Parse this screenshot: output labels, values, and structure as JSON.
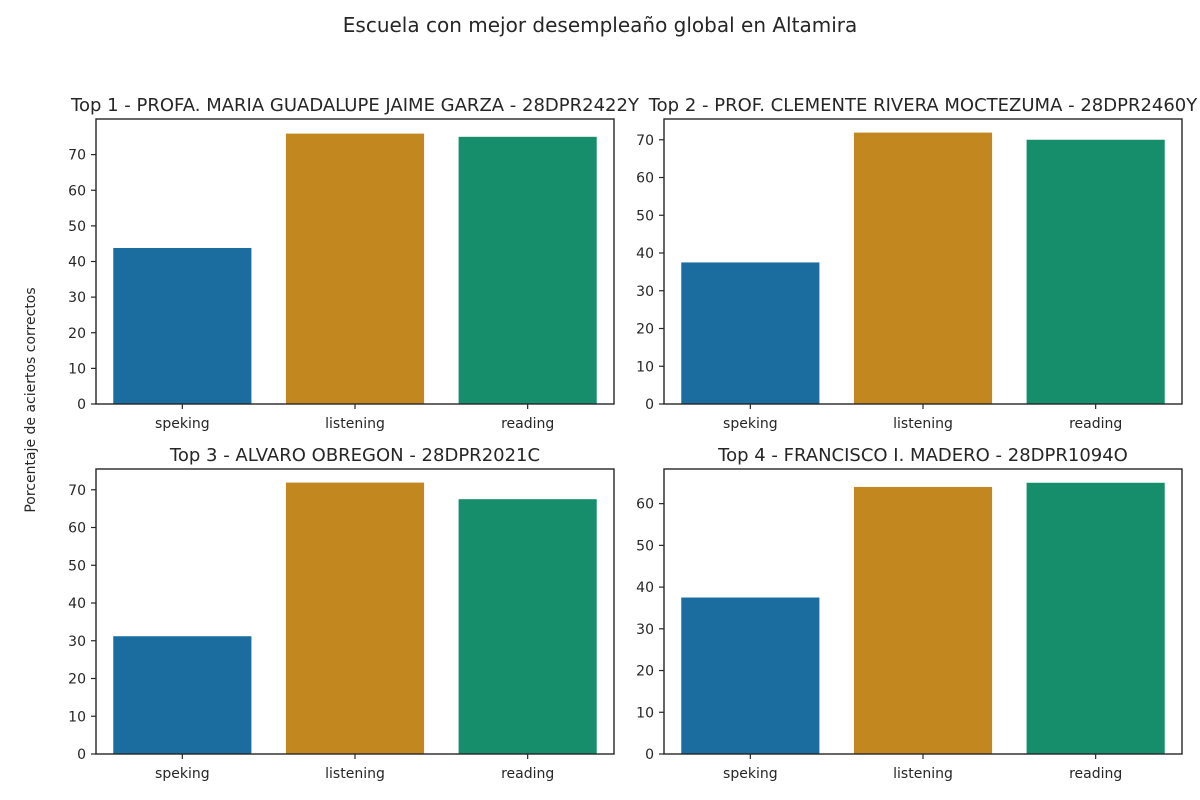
{
  "figure": {
    "suptitle": "Escuela con mejor desempleaño global en Altamira",
    "ylabel": "Porcentaje de aciertos correctos"
  },
  "chart_data": [
    {
      "type": "bar",
      "title": "Top  1 - PROFA. MARIA GUADALUPE JAIME GARZA - 28DPR2422Y",
      "categories": [
        "speking",
        "listening",
        "reading"
      ],
      "values": [
        43.8,
        75.9,
        75.0
      ],
      "ylim": [
        0,
        80
      ],
      "yticks": [
        0,
        10,
        20,
        30,
        40,
        50,
        60,
        70
      ],
      "colors": [
        "#1a6d9e",
        "#c2881f",
        "#168d6b"
      ],
      "grid": false
    },
    {
      "type": "bar",
      "title": "Top  2 - PROF. CLEMENTE RIVERA MOCTEZUMA - 28DPR2460Y",
      "categories": [
        "speking",
        "listening",
        "reading"
      ],
      "values": [
        37.5,
        71.9,
        70.0
      ],
      "ylim": [
        0,
        75.5
      ],
      "yticks": [
        0,
        10,
        20,
        30,
        40,
        50,
        60,
        70
      ],
      "colors": [
        "#1a6d9e",
        "#c2881f",
        "#168d6b"
      ],
      "grid": false
    },
    {
      "type": "bar",
      "title": "Top  3 - ALVARO OBREGON - 28DPR2021C",
      "categories": [
        "speking",
        "listening",
        "reading"
      ],
      "values": [
        31.2,
        71.9,
        67.5
      ],
      "ylim": [
        0,
        75.5
      ],
      "yticks": [
        0,
        10,
        20,
        30,
        40,
        50,
        60,
        70
      ],
      "colors": [
        "#1a6d9e",
        "#c2881f",
        "#168d6b"
      ],
      "grid": false
    },
    {
      "type": "bar",
      "title": "Top  4 - FRANCISCO I. MADERO - 28DPR1094O",
      "categories": [
        "speking",
        "listening",
        "reading"
      ],
      "values": [
        37.5,
        64.0,
        65.0
      ],
      "ylim": [
        0,
        68.3
      ],
      "yticks": [
        0,
        10,
        20,
        30,
        40,
        50,
        60
      ],
      "colors": [
        "#1a6d9e",
        "#c2881f",
        "#168d6b"
      ],
      "grid": false
    }
  ]
}
